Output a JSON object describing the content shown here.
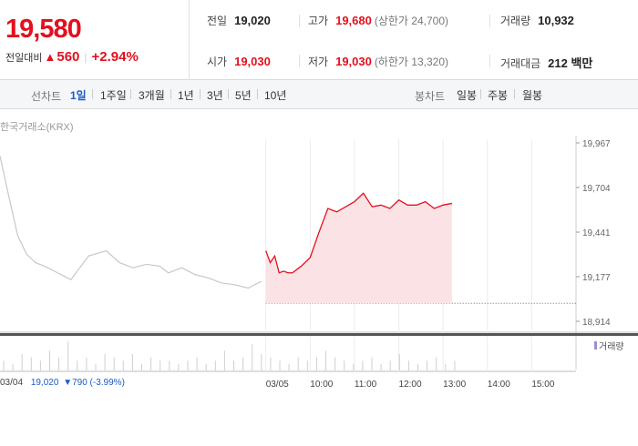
{
  "quote": {
    "price": "19,580",
    "change_label": "전일대비",
    "change_arrow": "▲",
    "change_value": "560",
    "change_rate": "+2.94%",
    "prev_close_label": "전일",
    "prev_close": "19,020",
    "high_label": "고가",
    "high": "19,680",
    "upper_limit": "(상한가 24,700)",
    "volume_label": "거래량",
    "volume": "10,932",
    "open_label": "시가",
    "open": "19,030",
    "low_label": "저가",
    "low": "19,030",
    "lower_limit": "(하한가 13,320)",
    "amount_label": "거래대금",
    "amount": "212 백만"
  },
  "toolbar": {
    "line_label": "선차트",
    "line_periods": [
      "1일",
      "1주일",
      "3개월",
      "1년",
      "3년",
      "5년",
      "10년"
    ],
    "candle_label": "봉차트",
    "candle_periods": [
      "일봉",
      "주봉",
      "월봉"
    ]
  },
  "chart": {
    "source": "한국거래소(KRX)",
    "volume_legend": "거래량",
    "bottom_date": "03/04",
    "bottom_price": "19,020",
    "bottom_change": "▼790 (-3.99%)",
    "colors": {
      "up": "#e3101f",
      "down": "#1f5bc6",
      "prev_line": "#c8c8c8",
      "area": "#fbe3e5"
    }
  },
  "chart_data": {
    "type": "line",
    "y_ticks": [
      "19,967",
      "19,704",
      "19,441",
      "19,177",
      "18,914"
    ],
    "ylim": [
      18914,
      19967
    ],
    "x_ticks": [
      "03/04",
      "03/05",
      "10:00",
      "11:00",
      "12:00",
      "13:00",
      "14:00",
      "15:00"
    ],
    "series": [
      {
        "x": [
          0,
          0.2,
          0.4,
          0.6,
          0.8,
          1.0,
          1.3,
          1.6,
          2.0,
          2.4,
          2.7,
          3.0,
          3.3,
          3.6,
          3.8,
          4.1,
          4.4,
          4.7,
          5.0,
          5.3,
          5.6,
          5.9
        ],
        "values": [
          19890,
          19650,
          19420,
          19310,
          19260,
          19240,
          19200,
          19160,
          19300,
          19330,
          19260,
          19230,
          19250,
          19240,
          19200,
          19230,
          19190,
          19170,
          19140,
          19130,
          19110,
          19150
        ]
      },
      {
        "x": [
          6.0,
          6.1,
          6.2,
          6.3,
          6.4,
          6.5,
          6.6,
          6.8,
          7.0,
          7.2,
          7.4,
          7.6,
          7.8,
          8.0,
          8.2,
          8.4,
          8.6,
          8.8,
          9.0,
          9.2,
          9.4,
          9.6,
          9.8,
          10.0,
          10.2
        ],
        "values": [
          19330,
          19260,
          19300,
          19200,
          19210,
          19200,
          19200,
          19240,
          19290,
          19440,
          19580,
          19560,
          19590,
          19620,
          19670,
          19590,
          19600,
          19580,
          19630,
          19600,
          19600,
          19620,
          19580,
          19600,
          19610
        ]
      }
    ],
    "prev_close": 19020,
    "volume": [
      3,
      2,
      5,
      4,
      3,
      6,
      4,
      9,
      3,
      4,
      2,
      5,
      4,
      3,
      5,
      2,
      4,
      3,
      3,
      2,
      3,
      4,
      2,
      3,
      6,
      3,
      4,
      8,
      5,
      4,
      3,
      2,
      4,
      3,
      4,
      6,
      4,
      3,
      2,
      3,
      4,
      2,
      3,
      5,
      3,
      2,
      3,
      4,
      2,
      3
    ]
  }
}
